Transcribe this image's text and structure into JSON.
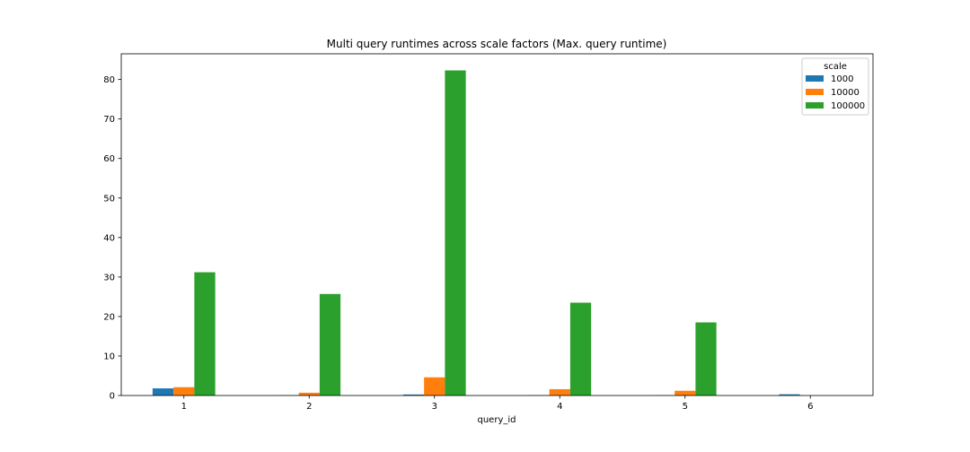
{
  "chart_data": {
    "type": "bar",
    "title": "Multi query runtimes across scale factors (Max. query runtime)",
    "xlabel": "query_id",
    "ylabel": "",
    "categories": [
      "1",
      "2",
      "3",
      "4",
      "5",
      "6"
    ],
    "yticks": [
      0,
      10,
      20,
      30,
      40,
      50,
      60,
      70,
      80
    ],
    "ylim": [
      0,
      86.5
    ],
    "grid": false,
    "legend": {
      "title": "scale",
      "placement": "upper right"
    },
    "series": [
      {
        "name": "1000",
        "color": "#1f77b4",
        "values": [
          1.8,
          0.05,
          0.25,
          0.05,
          0.05,
          0.3
        ]
      },
      {
        "name": "10000",
        "color": "#ff7f0e",
        "values": [
          2.1,
          0.7,
          4.6,
          1.6,
          1.2,
          0.0
        ]
      },
      {
        "name": "100000",
        "color": "#2ca02c",
        "values": [
          31.2,
          25.7,
          82.3,
          23.5,
          18.5,
          0.0
        ]
      }
    ]
  }
}
